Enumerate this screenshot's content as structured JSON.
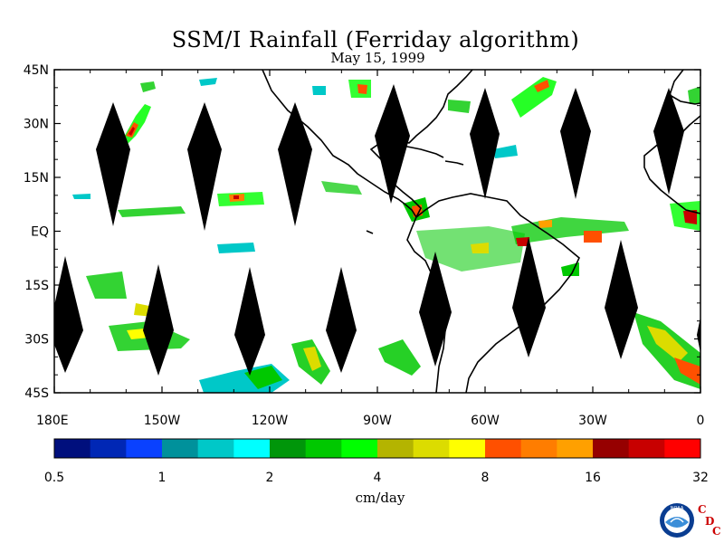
{
  "title": "SSM/I Rainfall (Ferriday algorithm)",
  "subtitle": "May 15, 1999",
  "map": {
    "lat_labels": [
      "45N",
      "30N",
      "15N",
      "EQ",
      "15S",
      "30S",
      "45S"
    ],
    "lon_labels": [
      "180E",
      "150W",
      "120W",
      "90W",
      "60W",
      "30W",
      "0"
    ],
    "lat_range": [
      -45,
      45
    ],
    "lon_range": [
      -180,
      0
    ],
    "swath_gap_color": "#000000",
    "coastline_color": "#000000",
    "land_color": "#ffffff"
  },
  "colorbar": {
    "unit": "cm/day",
    "tick_labels": [
      "0.5",
      "1",
      "2",
      "4",
      "8",
      "16",
      "32"
    ],
    "colors": [
      "#000f7d",
      "#0027b5",
      "#0a41ff",
      "#00919b",
      "#00c8c8",
      "#00ffff",
      "#00960a",
      "#00c800",
      "#00ff00",
      "#b4b400",
      "#dcdc00",
      "#ffff00",
      "#ff5000",
      "#ff7d00",
      "#ffa000",
      "#960000",
      "#c80000",
      "#ff0000"
    ]
  },
  "logo": {
    "noaa_text": "NOAA",
    "cdc_letters": [
      "C",
      "D",
      "C"
    ],
    "cdc_color": "#cc0000"
  }
}
